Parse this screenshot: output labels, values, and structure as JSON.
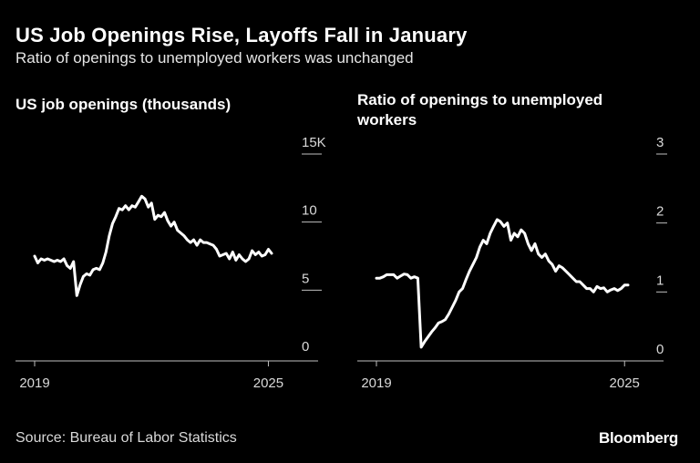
{
  "header": {
    "title": "US Job Openings Rise, Layoffs Fall in January",
    "subtitle": "Ratio of openings to unemployed workers was unchanged"
  },
  "footer": {
    "source": "Source: Bureau of Labor Statistics",
    "brand": "Bloomberg"
  },
  "colors": {
    "background": "#000000",
    "line": "#ffffff",
    "text": "#ffffff"
  },
  "chart_data": [
    {
      "type": "line",
      "title": "US job openings (thousands)",
      "xlabel": "",
      "ylabel": "",
      "xlim": [
        2019.0,
        2025.083
      ],
      "ylim": [
        0,
        15
      ],
      "y_ticks": [
        0,
        5,
        10,
        15
      ],
      "y_tick_labels": [
        "0",
        "5",
        "10",
        "15K"
      ],
      "x_ticks": [
        2019,
        2025
      ],
      "x_tick_labels": [
        "2019",
        "2025"
      ],
      "grid": false,
      "legend": "none",
      "series": [
        {
          "x": [
            2019.0,
            2019.083,
            2019.167,
            2019.25,
            2019.333,
            2019.417,
            2019.5,
            2019.583,
            2019.667,
            2019.75,
            2019.833,
            2019.917,
            2020.0,
            2020.083,
            2020.167,
            2020.25,
            2020.333,
            2020.417,
            2020.5,
            2020.583,
            2020.667,
            2020.75,
            2020.833,
            2020.917,
            2021.0,
            2021.083,
            2021.167,
            2021.25,
            2021.333,
            2021.417,
            2021.5,
            2021.583,
            2021.667,
            2021.75,
            2021.833,
            2021.917,
            2022.0,
            2022.083,
            2022.167,
            2022.25,
            2022.333,
            2022.417,
            2022.5,
            2022.583,
            2022.667,
            2022.75,
            2022.833,
            2022.917,
            2023.0,
            2023.083,
            2023.167,
            2023.25,
            2023.333,
            2023.417,
            2023.5,
            2023.583,
            2023.667,
            2023.75,
            2023.833,
            2023.917,
            2024.0,
            2024.083,
            2024.167,
            2024.25,
            2024.333,
            2024.417,
            2024.5,
            2024.583,
            2024.667,
            2024.75,
            2024.833,
            2024.917,
            2025.0,
            2025.083
          ],
          "values": [
            7.5,
            7.0,
            7.3,
            7.2,
            7.3,
            7.2,
            7.1,
            7.2,
            7.1,
            7.3,
            6.8,
            6.6,
            7.1,
            4.6,
            5.4,
            6.0,
            6.2,
            6.1,
            6.5,
            6.6,
            6.5,
            7.0,
            7.8,
            9.0,
            9.9,
            10.4,
            11.0,
            10.9,
            11.2,
            10.9,
            11.2,
            11.1,
            11.5,
            11.9,
            11.7,
            11.1,
            11.4,
            10.2,
            10.5,
            10.4,
            10.7,
            10.1,
            9.7,
            10.0,
            9.4,
            9.2,
            9.0,
            8.7,
            8.5,
            8.7,
            8.3,
            8.7,
            8.5,
            8.5,
            8.4,
            8.3,
            8.0,
            7.5,
            7.6,
            7.7,
            7.3,
            7.8,
            7.2,
            7.6,
            7.3,
            7.1,
            7.3,
            7.9,
            7.6,
            7.8,
            7.5,
            7.6,
            8.0,
            7.7
          ]
        }
      ]
    },
    {
      "type": "line",
      "title": "Ratio of openings to unemployed workers",
      "xlabel": "",
      "ylabel": "",
      "xlim": [
        2019.0,
        2025.083
      ],
      "ylim": [
        0,
        3
      ],
      "y_ticks": [
        0,
        1,
        2,
        3
      ],
      "y_tick_labels": [
        "0",
        "1",
        "2",
        "3"
      ],
      "x_ticks": [
        2019,
        2025
      ],
      "x_tick_labels": [
        "2019",
        "2025"
      ],
      "grid": false,
      "legend": "none",
      "series": [
        {
          "x": [
            2019.0,
            2019.083,
            2019.167,
            2019.25,
            2019.333,
            2019.417,
            2019.5,
            2019.583,
            2019.667,
            2019.75,
            2019.833,
            2019.917,
            2020.0,
            2020.083,
            2020.167,
            2020.25,
            2020.333,
            2020.417,
            2020.5,
            2020.583,
            2020.667,
            2020.75,
            2020.833,
            2020.917,
            2021.0,
            2021.083,
            2021.167,
            2021.25,
            2021.333,
            2021.417,
            2021.5,
            2021.583,
            2021.667,
            2021.75,
            2021.833,
            2021.917,
            2022.0,
            2022.083,
            2022.167,
            2022.25,
            2022.333,
            2022.417,
            2022.5,
            2022.583,
            2022.667,
            2022.75,
            2022.833,
            2022.917,
            2023.0,
            2023.083,
            2023.167,
            2023.25,
            2023.333,
            2023.417,
            2023.5,
            2023.583,
            2023.667,
            2023.75,
            2023.833,
            2023.917,
            2024.0,
            2024.083,
            2024.167,
            2024.25,
            2024.333,
            2024.417,
            2024.5,
            2024.583,
            2024.667,
            2024.75,
            2024.833,
            2024.917,
            2025.0,
            2025.083
          ],
          "values": [
            1.2,
            1.2,
            1.22,
            1.25,
            1.25,
            1.25,
            1.2,
            1.23,
            1.26,
            1.25,
            1.2,
            1.22,
            1.2,
            0.2,
            0.28,
            0.35,
            0.42,
            0.48,
            0.55,
            0.57,
            0.6,
            0.68,
            0.78,
            0.88,
            1.0,
            1.05,
            1.18,
            1.3,
            1.4,
            1.5,
            1.65,
            1.75,
            1.7,
            1.85,
            1.95,
            2.05,
            2.02,
            1.95,
            2.0,
            1.75,
            1.85,
            1.8,
            1.9,
            1.85,
            1.7,
            1.6,
            1.7,
            1.55,
            1.5,
            1.55,
            1.45,
            1.4,
            1.3,
            1.38,
            1.35,
            1.3,
            1.25,
            1.2,
            1.15,
            1.15,
            1.1,
            1.05,
            1.05,
            1.0,
            1.08,
            1.05,
            1.06,
            1.0,
            1.03,
            1.05,
            1.02,
            1.05,
            1.1,
            1.1
          ]
        }
      ]
    }
  ]
}
